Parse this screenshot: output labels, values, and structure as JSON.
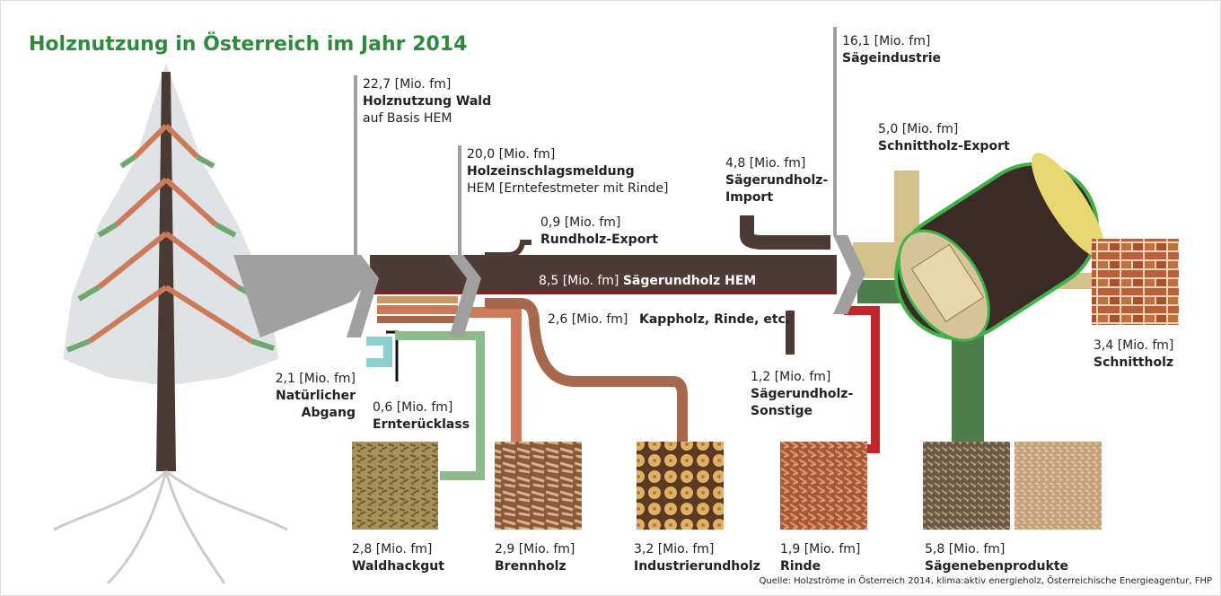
{
  "header": {
    "title": "Holznutzung in Österreich im Jahr 2014"
  },
  "nodes": [
    {
      "amount": "22,7 [Mio. fm]",
      "lines": [
        "Holznutzung Wald"
      ],
      "note": "auf Basis HEM"
    },
    {
      "amount": "20,0 [Mio. fm]",
      "lines": [
        "Holzeinschlagsmeldung"
      ],
      "note": "HEM [Erntefestmeter mit Rinde]"
    },
    {
      "amount": "0,9 [Mio. fm]",
      "lines": [
        "Rundholz-Export"
      ]
    },
    {
      "amount": "8,5 [Mio. fm]",
      "lines": [
        "Sägerundholz HEM"
      ]
    },
    {
      "amount": "2,6 [Mio. fm]",
      "lines": [
        "Kappholz, Rinde, etc."
      ]
    },
    {
      "amount": "16,1 [Mio. fm]",
      "lines": [
        "Sägeindustrie"
      ]
    },
    {
      "amount": "5,0 [Mio. fm]",
      "lines": [
        "Schnittholz-Export"
      ]
    },
    {
      "amount": "4,8 [Mio. fm]",
      "lines": [
        "Sägerundholz-",
        "Import"
      ]
    },
    {
      "amount": "1,2 [Mio. fm]",
      "lines": [
        "Sägerundholz-",
        "Sonstige"
      ]
    },
    {
      "amount": "3,4 [Mio. fm]",
      "lines": [
        "Schnittholz"
      ]
    },
    {
      "amount": "2,1 [Mio. fm]",
      "lines": [
        "Natürlicher",
        "Abgang"
      ]
    },
    {
      "amount": "0,6 [Mio. fm]",
      "lines": [
        "Ernterücklass"
      ]
    },
    {
      "amount": "2,8 [Mio. fm]",
      "lines": [
        "Waldhackgut"
      ]
    },
    {
      "amount": "2,9 [Mio. fm]",
      "lines": [
        "Brennholz"
      ]
    },
    {
      "amount": "3,2 [Mio. fm]",
      "lines": [
        "Industrierundholz"
      ]
    },
    {
      "amount": "1,9 [Mio. fm]",
      "lines": [
        "Rinde"
      ]
    },
    {
      "amount": "5,8 [Mio. fm]",
      "lines": [
        "Sägenebenprodukte"
      ]
    }
  ],
  "footer": {
    "source": "Quelle: Holzströme in Österreich 2014, klima:aktiv energieholz, Österreichische Energieagentur, FHP"
  }
}
